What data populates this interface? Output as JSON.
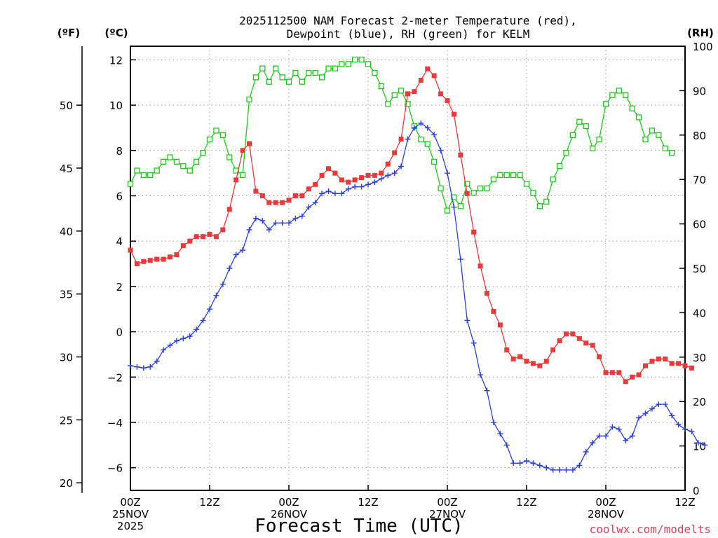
{
  "chart_data": {
    "type": "line",
    "title_line1": "2025112500 NAM Forecast 2-meter Temperature (red),",
    "title_line2": "Dewpoint (blue), RH (green) for KELM",
    "unit_f": "(ºF)",
    "unit_c": "(ºC)",
    "unit_rh": "(RH)",
    "xlabel": "Forecast Time (UTC)",
    "watermark": "coolwx.com/modelts",
    "x_range_hours": [
      0,
      84
    ],
    "x_ticks": [
      {
        "h": 0,
        "l1": "00Z",
        "l2": "25NOV",
        "l3": "2025"
      },
      {
        "h": 12,
        "l1": "12Z",
        "l2": "",
        "l3": ""
      },
      {
        "h": 24,
        "l1": "00Z",
        "l2": "26NOV",
        "l3": ""
      },
      {
        "h": 36,
        "l1": "12Z",
        "l2": "",
        "l3": ""
      },
      {
        "h": 48,
        "l1": "00Z",
        "l2": "27NOV",
        "l3": ""
      },
      {
        "h": 60,
        "l1": "12Z",
        "l2": "",
        "l3": ""
      },
      {
        "h": 72,
        "l1": "00Z",
        "l2": "28NOV",
        "l3": ""
      },
      {
        "h": 84,
        "l1": "12Z",
        "l2": "",
        "l3": ""
      }
    ],
    "c_range": [
      -7,
      12.6
    ],
    "c_ticks": [
      "−6",
      "−4",
      "−2",
      "0",
      "2",
      "4",
      "6",
      "8",
      "10",
      "12"
    ],
    "f_ticks": [
      "20",
      "25",
      "30",
      "35",
      "40",
      "45",
      "50"
    ],
    "rh_range": [
      0,
      100
    ],
    "rh_ticks": [
      "0",
      "10",
      "20",
      "30",
      "40",
      "50",
      "60",
      "70",
      "80",
      "90",
      "100"
    ],
    "colors": {
      "temperature": "#e83a3a",
      "dewpoint": "#2a3fe0",
      "rh": "#1fc81f"
    },
    "series": [
      {
        "name": "Temperature",
        "values": [
          3.6,
          3.0,
          3.1,
          3.15,
          3.2,
          3.2,
          3.3,
          3.4,
          3.8,
          4.0,
          4.2,
          4.2,
          4.3,
          4.2,
          4.5,
          5.4,
          6.7,
          8.0,
          8.3,
          6.2,
          6.0,
          5.7,
          5.7,
          5.7,
          5.8,
          6.0,
          6.0,
          6.3,
          6.5,
          6.9,
          7.2,
          7.0,
          6.7,
          6.6,
          6.7,
          6.8,
          6.9,
          6.9,
          7.0,
          7.4,
          7.9,
          8.5,
          10.5,
          10.6,
          11.1,
          11.6,
          11.3,
          10.5,
          10.2,
          9.6,
          7.8,
          6.1,
          4.4,
          2.9,
          1.7,
          0.9,
          0.3,
          -0.8,
          -1.2,
          -1.1,
          -1.3,
          -1.4,
          -1.5,
          -1.3,
          -0.8,
          -0.4,
          -0.1,
          -0.1,
          -0.3,
          -0.5,
          -0.6,
          -1.1,
          -1.8,
          -1.8,
          -1.8,
          -2.2,
          -2.0,
          -1.9,
          -1.5,
          -1.3,
          -1.2,
          -1.2,
          -1.4,
          -1.4,
          -1.5,
          -1.6
        ]
      },
      {
        "name": "Dewpoint",
        "values": [
          -1.5,
          -1.55,
          -1.6,
          -1.55,
          -1.3,
          -0.8,
          -0.6,
          -0.4,
          -0.3,
          -0.2,
          0.1,
          0.5,
          1.0,
          1.6,
          2.1,
          2.8,
          3.4,
          3.6,
          4.5,
          5.0,
          4.9,
          4.5,
          4.8,
          4.8,
          4.8,
          5.0,
          5.1,
          5.5,
          5.7,
          6.1,
          6.2,
          6.1,
          6.1,
          6.3,
          6.4,
          6.4,
          6.5,
          6.6,
          6.75,
          6.9,
          7.0,
          7.3,
          8.5,
          9.0,
          9.2,
          9.0,
          8.7,
          8.0,
          7.0,
          5.5,
          3.2,
          0.5,
          -0.5,
          -1.9,
          -2.6,
          -4.0,
          -4.5,
          -5.0,
          -5.8,
          -5.8,
          -5.7,
          -5.8,
          -5.9,
          -6.0,
          -6.1,
          -6.1,
          -6.1,
          -6.1,
          -5.9,
          -5.3,
          -4.9,
          -4.6,
          -4.6,
          -4.2,
          -4.3,
          -4.8,
          -4.6,
          -3.8,
          -3.6,
          -3.4,
          -3.2,
          -3.2,
          -3.7,
          -4.1,
          -4.3,
          -4.4,
          -4.9,
          -5.0
        ]
      },
      {
        "name": "RH",
        "values": [
          69,
          72,
          71,
          71,
          72,
          74,
          75,
          74,
          73,
          72,
          74,
          76,
          79,
          81,
          80,
          75,
          72,
          71,
          88,
          93,
          95,
          92,
          95,
          93,
          92,
          94,
          92,
          94,
          94,
          93,
          95,
          95,
          96,
          96,
          97,
          97,
          96,
          94,
          91,
          87,
          89,
          90,
          87,
          82,
          79,
          78,
          74,
          68,
          63,
          66,
          64,
          69,
          67,
          68,
          68,
          70,
          71,
          71,
          71,
          71,
          69,
          67,
          64,
          65,
          70,
          73,
          76,
          80,
          83,
          82,
          77,
          79,
          87,
          89,
          90,
          89,
          86,
          84,
          79,
          81,
          80,
          77,
          76
        ]
      }
    ]
  }
}
